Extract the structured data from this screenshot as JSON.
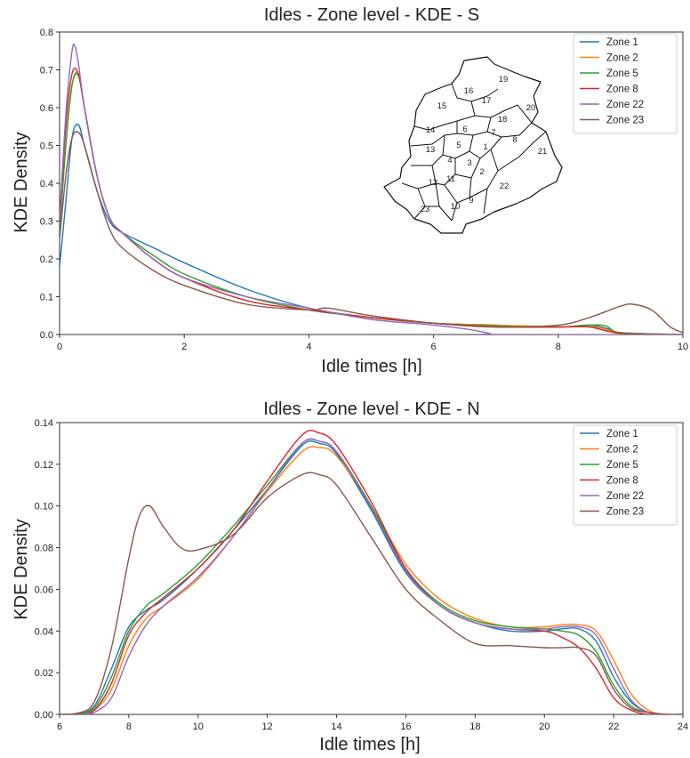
{
  "chart_data": [
    {
      "type": "line",
      "title": "Idles - Zone level - KDE - S",
      "xlabel": "Idle times [h]",
      "ylabel": "KDE Density",
      "xlim": [
        0,
        10
      ],
      "ylim": [
        0,
        0.8
      ],
      "xticks": [
        0,
        2,
        4,
        6,
        8,
        10
      ],
      "yticks": [
        0.0,
        0.1,
        0.2,
        0.3,
        0.4,
        0.5,
        0.6,
        0.7,
        0.8
      ],
      "grid": false,
      "legend_position": "top-right",
      "colors": [
        "#1f77b4",
        "#ff7f0e",
        "#2ca02c",
        "#d62728",
        "#9467bd",
        "#8c564b"
      ],
      "series": [
        {
          "name": "Zone 1",
          "x": [
            0,
            0.1,
            0.2,
            0.3,
            0.4,
            0.6,
            0.8,
            1,
            1.5,
            2,
            3,
            4,
            5,
            6,
            7,
            8,
            8.5,
            8.8,
            9,
            10
          ],
          "y": [
            0.18,
            0.35,
            0.52,
            0.555,
            0.5,
            0.38,
            0.3,
            0.27,
            0.23,
            0.19,
            0.12,
            0.07,
            0.045,
            0.03,
            0.025,
            0.02,
            0.025,
            0.015,
            0.005,
            0
          ]
        },
        {
          "name": "Zone 2",
          "x": [
            0,
            0.1,
            0.2,
            0.3,
            0.4,
            0.6,
            0.8,
            1,
            1.5,
            2,
            3,
            4,
            5,
            6,
            7,
            8,
            8.6,
            9,
            10
          ],
          "y": [
            0.28,
            0.5,
            0.66,
            0.69,
            0.6,
            0.42,
            0.31,
            0.27,
            0.2,
            0.15,
            0.1,
            0.065,
            0.045,
            0.03,
            0.025,
            0.02,
            0.02,
            0.005,
            0
          ]
        },
        {
          "name": "Zone 5",
          "x": [
            0,
            0.1,
            0.2,
            0.3,
            0.4,
            0.6,
            0.8,
            1,
            1.5,
            2,
            3,
            4,
            5,
            6,
            7,
            8,
            8.7,
            9,
            10
          ],
          "y": [
            0.27,
            0.5,
            0.66,
            0.685,
            0.6,
            0.42,
            0.31,
            0.27,
            0.21,
            0.16,
            0.1,
            0.065,
            0.045,
            0.03,
            0.022,
            0.02,
            0.025,
            0.005,
            0
          ]
        },
        {
          "name": "Zone 8",
          "x": [
            0,
            0.1,
            0.2,
            0.3,
            0.4,
            0.6,
            0.8,
            1,
            1.5,
            2,
            3,
            4,
            5,
            6,
            7,
            8,
            8.5,
            9,
            10
          ],
          "y": [
            0.3,
            0.55,
            0.69,
            0.69,
            0.6,
            0.42,
            0.31,
            0.27,
            0.2,
            0.15,
            0.09,
            0.065,
            0.045,
            0.03,
            0.02,
            0.02,
            0.02,
            0.003,
            0
          ]
        },
        {
          "name": "Zone 22",
          "x": [
            0,
            0.1,
            0.2,
            0.25,
            0.3,
            0.4,
            0.6,
            0.8,
            1,
            1.5,
            2,
            3,
            4,
            5,
            6,
            6.5,
            6.9,
            7,
            10
          ],
          "y": [
            0.3,
            0.58,
            0.75,
            0.76,
            0.72,
            0.6,
            0.42,
            0.31,
            0.27,
            0.2,
            0.15,
            0.1,
            0.07,
            0.04,
            0.025,
            0.015,
            0.003,
            0,
            0
          ]
        },
        {
          "name": "Zone 23",
          "x": [
            0,
            0.1,
            0.2,
            0.3,
            0.4,
            0.6,
            0.8,
            1,
            1.5,
            2,
            3,
            4,
            4.3,
            5,
            6,
            7,
            8,
            8.5,
            9,
            9.2,
            9.5,
            9.8,
            10
          ],
          "y": [
            0.25,
            0.42,
            0.52,
            0.535,
            0.5,
            0.38,
            0.28,
            0.23,
            0.17,
            0.13,
            0.08,
            0.065,
            0.07,
            0.05,
            0.03,
            0.02,
            0.025,
            0.045,
            0.075,
            0.08,
            0.065,
            0.02,
            0.005
          ]
        }
      ],
      "inset_map": {
        "zone_labels": [
          "1",
          "2",
          "3",
          "4",
          "5",
          "6",
          "7",
          "8",
          "9",
          "10",
          "11",
          "12",
          "13",
          "14",
          "15",
          "16",
          "17",
          "18",
          "19",
          "20",
          "21",
          "22",
          "23"
        ]
      }
    },
    {
      "type": "line",
      "title": "Idles - Zone level - KDE - N",
      "xlabel": "Idle times [h]",
      "ylabel": "KDE Density",
      "xlim": [
        6,
        24
      ],
      "ylim": [
        0,
        0.14
      ],
      "xticks": [
        6,
        8,
        10,
        12,
        14,
        16,
        18,
        20,
        22,
        24
      ],
      "yticks": [
        0.0,
        0.02,
        0.04,
        0.06,
        0.08,
        0.1,
        0.12,
        0.14
      ],
      "grid": false,
      "legend_position": "top-right",
      "colors": [
        "#1f77b4",
        "#ff7f0e",
        "#2ca02c",
        "#d62728",
        "#9467bd",
        "#8c564b"
      ],
      "series": [
        {
          "name": "Zone 1",
          "x": [
            6,
            6.5,
            7,
            7.5,
            8,
            8.5,
            9,
            10,
            11,
            12,
            13,
            13.5,
            14,
            15,
            16,
            17,
            18,
            19,
            20,
            20.5,
            21,
            21.5,
            22,
            22.5,
            23,
            23.5,
            24
          ],
          "y": [
            0,
            0.0005,
            0.004,
            0.022,
            0.042,
            0.05,
            0.055,
            0.07,
            0.088,
            0.108,
            0.129,
            0.13,
            0.125,
            0.098,
            0.068,
            0.052,
            0.044,
            0.04,
            0.04,
            0.041,
            0.041,
            0.035,
            0.018,
            0.006,
            0.001,
            0,
            0
          ]
        },
        {
          "name": "Zone 2",
          "x": [
            6,
            6.5,
            7,
            7.5,
            8,
            8.5,
            9,
            10,
            11,
            12,
            13,
            13.5,
            14,
            15,
            16,
            17,
            18,
            19,
            20,
            20.5,
            21,
            21.5,
            22,
            22.5,
            23,
            23.5,
            24
          ],
          "y": [
            0,
            0,
            0.002,
            0.012,
            0.033,
            0.046,
            0.052,
            0.065,
            0.085,
            0.107,
            0.126,
            0.128,
            0.124,
            0.1,
            0.072,
            0.055,
            0.046,
            0.042,
            0.042,
            0.043,
            0.043,
            0.04,
            0.026,
            0.01,
            0.002,
            0,
            0
          ]
        },
        {
          "name": "Zone 5",
          "x": [
            6,
            6.5,
            7,
            7.5,
            8,
            8.5,
            9,
            10,
            11,
            12,
            13,
            13.5,
            14,
            15,
            16,
            17,
            18,
            19,
            20,
            20.5,
            21,
            21.5,
            22,
            22.5,
            23,
            23.5,
            24
          ],
          "y": [
            0,
            0.0005,
            0.003,
            0.018,
            0.04,
            0.052,
            0.058,
            0.072,
            0.09,
            0.11,
            0.13,
            0.131,
            0.126,
            0.1,
            0.07,
            0.053,
            0.045,
            0.042,
            0.041,
            0.04,
            0.038,
            0.03,
            0.014,
            0.004,
            0.001,
            0,
            0
          ]
        },
        {
          "name": "Zone 8",
          "x": [
            6,
            6.5,
            7,
            7.5,
            8,
            8.5,
            9,
            10,
            11,
            12,
            13,
            13.5,
            14,
            15,
            16,
            17,
            18,
            19,
            20,
            20.5,
            21,
            21.5,
            22,
            22.5,
            23,
            23.5,
            24
          ],
          "y": [
            0,
            0,
            0.002,
            0.015,
            0.038,
            0.049,
            0.056,
            0.07,
            0.088,
            0.112,
            0.134,
            0.135,
            0.129,
            0.102,
            0.07,
            0.052,
            0.044,
            0.041,
            0.04,
            0.037,
            0.032,
            0.022,
            0.008,
            0.002,
            0,
            0,
            0
          ]
        },
        {
          "name": "Zone 22",
          "x": [
            6,
            6.5,
            7,
            7.5,
            8,
            8.5,
            9,
            10,
            11,
            12,
            13,
            13.5,
            14,
            15,
            16,
            17,
            18,
            19,
            20,
            20.5,
            21,
            21.5,
            22,
            22.5,
            23,
            23.5,
            24
          ],
          "y": [
            0,
            0,
            0.001,
            0.008,
            0.028,
            0.043,
            0.052,
            0.066,
            0.085,
            0.108,
            0.13,
            0.131,
            0.126,
            0.099,
            0.069,
            0.052,
            0.044,
            0.041,
            0.041,
            0.042,
            0.042,
            0.038,
            0.022,
            0.007,
            0.001,
            0,
            0
          ]
        },
        {
          "name": "Zone 23",
          "x": [
            6,
            6.5,
            7,
            7.5,
            8,
            8.3,
            8.6,
            9,
            9.5,
            10,
            11,
            12,
            13,
            13.5,
            14,
            15,
            16,
            17,
            18,
            19,
            20,
            20.5,
            21,
            21.5,
            22,
            22.5,
            23,
            23.5,
            24
          ],
          "y": [
            0,
            0.0005,
            0.006,
            0.032,
            0.075,
            0.095,
            0.1,
            0.09,
            0.08,
            0.079,
            0.086,
            0.104,
            0.115,
            0.115,
            0.11,
            0.085,
            0.06,
            0.045,
            0.034,
            0.033,
            0.032,
            0.032,
            0.032,
            0.028,
            0.012,
            0.003,
            0.001,
            0,
            0
          ]
        }
      ]
    }
  ]
}
